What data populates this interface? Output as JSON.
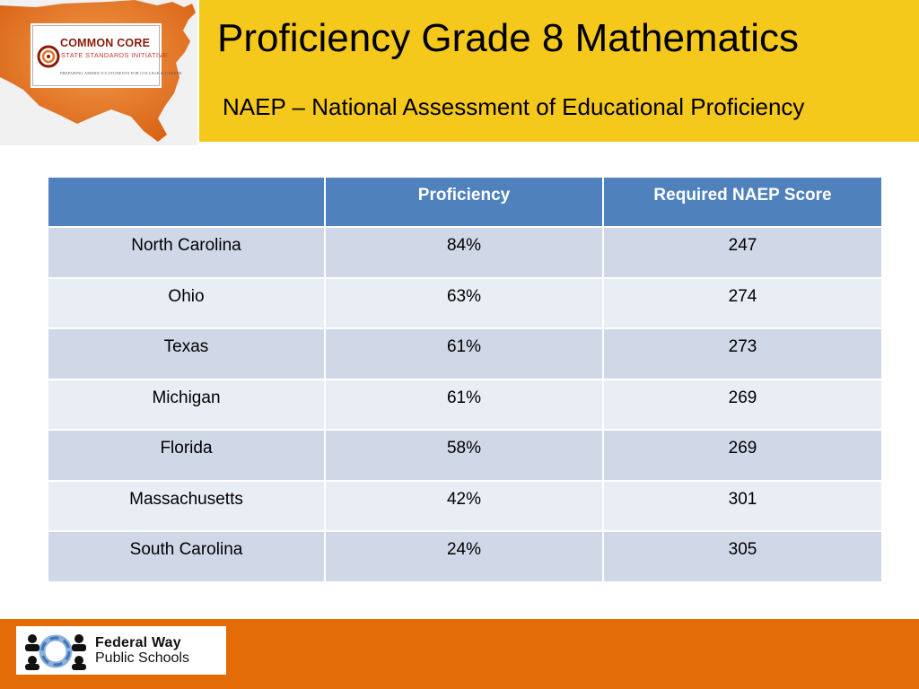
{
  "header": {
    "title": "Proficiency Grade 8 Mathematics",
    "subtitle": "NAEP – National Assessment of Educational Proficiency"
  },
  "logos": {
    "common_core": {
      "title": "COMMON CORE",
      "subtitle": "STATE STANDARDS INITIATIVE",
      "tagline": "PREPARING AMERICA'S STUDENTS FOR COLLEGE & CAREER",
      "map_icon": "us-map-icon",
      "swirl_icon": "swirl-icon"
    },
    "federal_way": {
      "line1": "Federal Way",
      "line2": "Public Schools",
      "icon": "people-circle-icon"
    }
  },
  "table": {
    "headers": [
      "",
      "Proficiency",
      "Required NAEP Score"
    ],
    "rows": [
      {
        "state": "North Carolina",
        "proficiency": "84%",
        "score": "247"
      },
      {
        "state": "Ohio",
        "proficiency": "63%",
        "score": "274"
      },
      {
        "state": "Texas",
        "proficiency": "61%",
        "score": "273"
      },
      {
        "state": "Michigan",
        "proficiency": "61%",
        "score": "269"
      },
      {
        "state": "Florida",
        "proficiency": "58%",
        "score": "269"
      },
      {
        "state": "Massachusetts",
        "proficiency": "42%",
        "score": "301"
      },
      {
        "state": "South Carolina",
        "proficiency": "24%",
        "score": "305"
      }
    ]
  },
  "colors": {
    "header_bar": "#f5c81c",
    "footer_bar": "#e36c09",
    "table_header": "#4f81bd",
    "row_odd": "#d0d8e8",
    "row_even": "#e9edf4",
    "map_orange": "#e8731f"
  }
}
